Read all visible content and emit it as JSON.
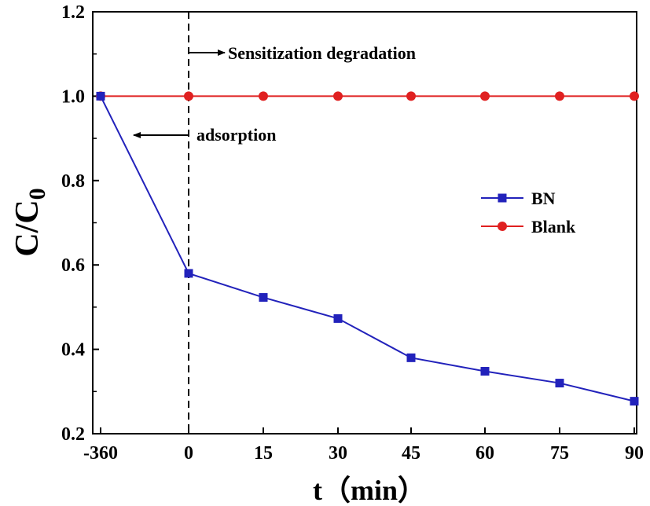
{
  "chart_data": {
    "type": "line",
    "categories": [
      "-360",
      "0",
      "15",
      "30",
      "45",
      "60",
      "75",
      "90"
    ],
    "xlabel_main": "t",
    "xlabel_unit": "（min）",
    "ylabel_main": "C/C",
    "ylabel_sub": "0",
    "ylim": [
      0.2,
      1.2
    ],
    "yticks": [
      "0.2",
      "0.4",
      "0.6",
      "0.8",
      "1.0",
      "1.2"
    ],
    "grid": false,
    "legend_position": "center-right",
    "series": [
      {
        "name": "BN",
        "color": "#2222bb",
        "marker": "square",
        "values": [
          1.0,
          0.58,
          0.523,
          0.473,
          0.38,
          0.348,
          0.32,
          0.277
        ]
      },
      {
        "name": "Blank",
        "color": "#e02020",
        "marker": "circle",
        "values": [
          1.0,
          1.0,
          1.0,
          1.0,
          1.0,
          1.0,
          1.0,
          1.0
        ]
      }
    ],
    "annotations": {
      "divider_at": "0",
      "right_label": "Sensitization degradation",
      "left_label": "adsorption"
    }
  }
}
